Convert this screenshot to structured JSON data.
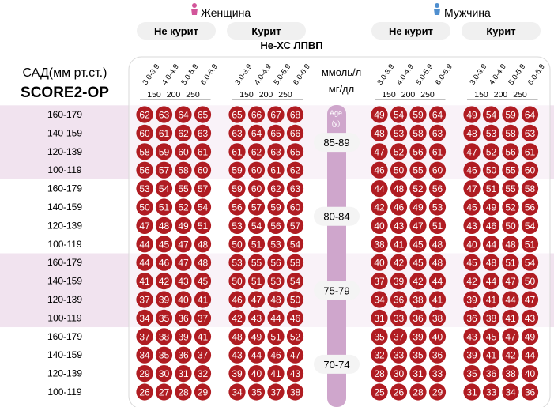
{
  "header": {
    "female_label": "Женщина",
    "male_label": "Мужчина",
    "nonsmoker_label": "Не курит",
    "smoker_label": "Курит",
    "lipid_title": "Не-ХС ЛПВП",
    "units_mmol": "ммоль/л",
    "units_mg": "мг/дл",
    "sbp_label": "САД(мм рт.ст.)",
    "score_label": "SCORE2-OP",
    "age_label": "Age",
    "age_unit": "(y)"
  },
  "colors": {
    "circle": "#b01c22",
    "band_pink": "#f1e3ef",
    "band_white": "#ffffff",
    "age_bar": "#cfa6cc",
    "female_icon": "#d2559a",
    "male_icon": "#4f8fcf"
  },
  "chart_data": {
    "type": "heatmap",
    "title": "SCORE2-OP",
    "x_ticks_mmol": [
      "3.0-3.9",
      "4.0-4.9",
      "5.0-5.9",
      "6.0-6.9"
    ],
    "x_ticks_mg": [
      "150",
      "200",
      "250"
    ],
    "age_groups": [
      "85-89",
      "80-84",
      "75-79",
      "70-74"
    ],
    "sbp_rows": [
      "160-179",
      "140-159",
      "120-139",
      "100-119"
    ],
    "groups": [
      {
        "sex": "Женщина",
        "smoking": "Не курит",
        "values": [
          [
            [
              62,
              63,
              64,
              65
            ],
            [
              60,
              61,
              62,
              63
            ],
            [
              58,
              59,
              60,
              61
            ],
            [
              56,
              57,
              58,
              60
            ]
          ],
          [
            [
              53,
              54,
              55,
              57
            ],
            [
              50,
              51,
              52,
              54
            ],
            [
              47,
              48,
              49,
              51
            ],
            [
              44,
              45,
              47,
              48
            ]
          ],
          [
            [
              44,
              46,
              47,
              48
            ],
            [
              41,
              42,
              43,
              45
            ],
            [
              37,
              39,
              40,
              41
            ],
            [
              34,
              35,
              36,
              37
            ]
          ],
          [
            [
              37,
              38,
              39,
              41
            ],
            [
              34,
              35,
              36,
              37
            ],
            [
              29,
              30,
              31,
              32
            ],
            [
              26,
              27,
              28,
              29
            ]
          ]
        ]
      },
      {
        "sex": "Женщина",
        "smoking": "Курит",
        "values": [
          [
            [
              65,
              66,
              67,
              68
            ],
            [
              63,
              64,
              65,
              66
            ],
            [
              61,
              62,
              63,
              65
            ],
            [
              59,
              60,
              61,
              62
            ]
          ],
          [
            [
              59,
              60,
              62,
              63
            ],
            [
              56,
              57,
              59,
              60
            ],
            [
              53,
              54,
              56,
              57
            ],
            [
              50,
              51,
              53,
              54
            ]
          ],
          [
            [
              53,
              55,
              56,
              58
            ],
            [
              50,
              51,
              53,
              54
            ],
            [
              46,
              47,
              48,
              50
            ],
            [
              42,
              43,
              44,
              46
            ]
          ],
          [
            [
              48,
              49,
              51,
              52
            ],
            [
              43,
              44,
              46,
              47
            ],
            [
              39,
              40,
              41,
              43
            ],
            [
              34,
              35,
              37,
              38
            ]
          ]
        ]
      },
      {
        "sex": "Мужчина",
        "smoking": "Не курит",
        "values": [
          [
            [
              49,
              54,
              59,
              64
            ],
            [
              48,
              53,
              58,
              63
            ],
            [
              47,
              52,
              56,
              61
            ],
            [
              46,
              50,
              55,
              60
            ]
          ],
          [
            [
              44,
              48,
              52,
              56
            ],
            [
              42,
              46,
              49,
              53
            ],
            [
              40,
              43,
              47,
              51
            ],
            [
              38,
              41,
              45,
              48
            ]
          ],
          [
            [
              40,
              42,
              45,
              48
            ],
            [
              37,
              39,
              42,
              44
            ],
            [
              34,
              36,
              38,
              41
            ],
            [
              31,
              33,
              36,
              38
            ]
          ],
          [
            [
              35,
              37,
              39,
              40
            ],
            [
              32,
              33,
              35,
              36
            ],
            [
              28,
              30,
              31,
              33
            ],
            [
              25,
              26,
              28,
              29
            ]
          ]
        ]
      },
      {
        "sex": "Мужчина",
        "smoking": "Курит",
        "values": [
          [
            [
              49,
              54,
              59,
              64
            ],
            [
              48,
              53,
              58,
              63
            ],
            [
              47,
              52,
              56,
              61
            ],
            [
              46,
              50,
              55,
              60
            ]
          ],
          [
            [
              47,
              51,
              55,
              58
            ],
            [
              45,
              49,
              52,
              56
            ],
            [
              43,
              46,
              50,
              54
            ],
            [
              40,
              44,
              48,
              51
            ]
          ],
          [
            [
              45,
              48,
              51,
              54
            ],
            [
              42,
              44,
              47,
              50
            ],
            [
              39,
              41,
              44,
              47
            ],
            [
              36,
              38,
              41,
              43
            ]
          ],
          [
            [
              43,
              45,
              47,
              49
            ],
            [
              39,
              41,
              42,
              44
            ],
            [
              35,
              36,
              38,
              40
            ],
            [
              31,
              33,
              34,
              36
            ]
          ]
        ]
      }
    ]
  }
}
